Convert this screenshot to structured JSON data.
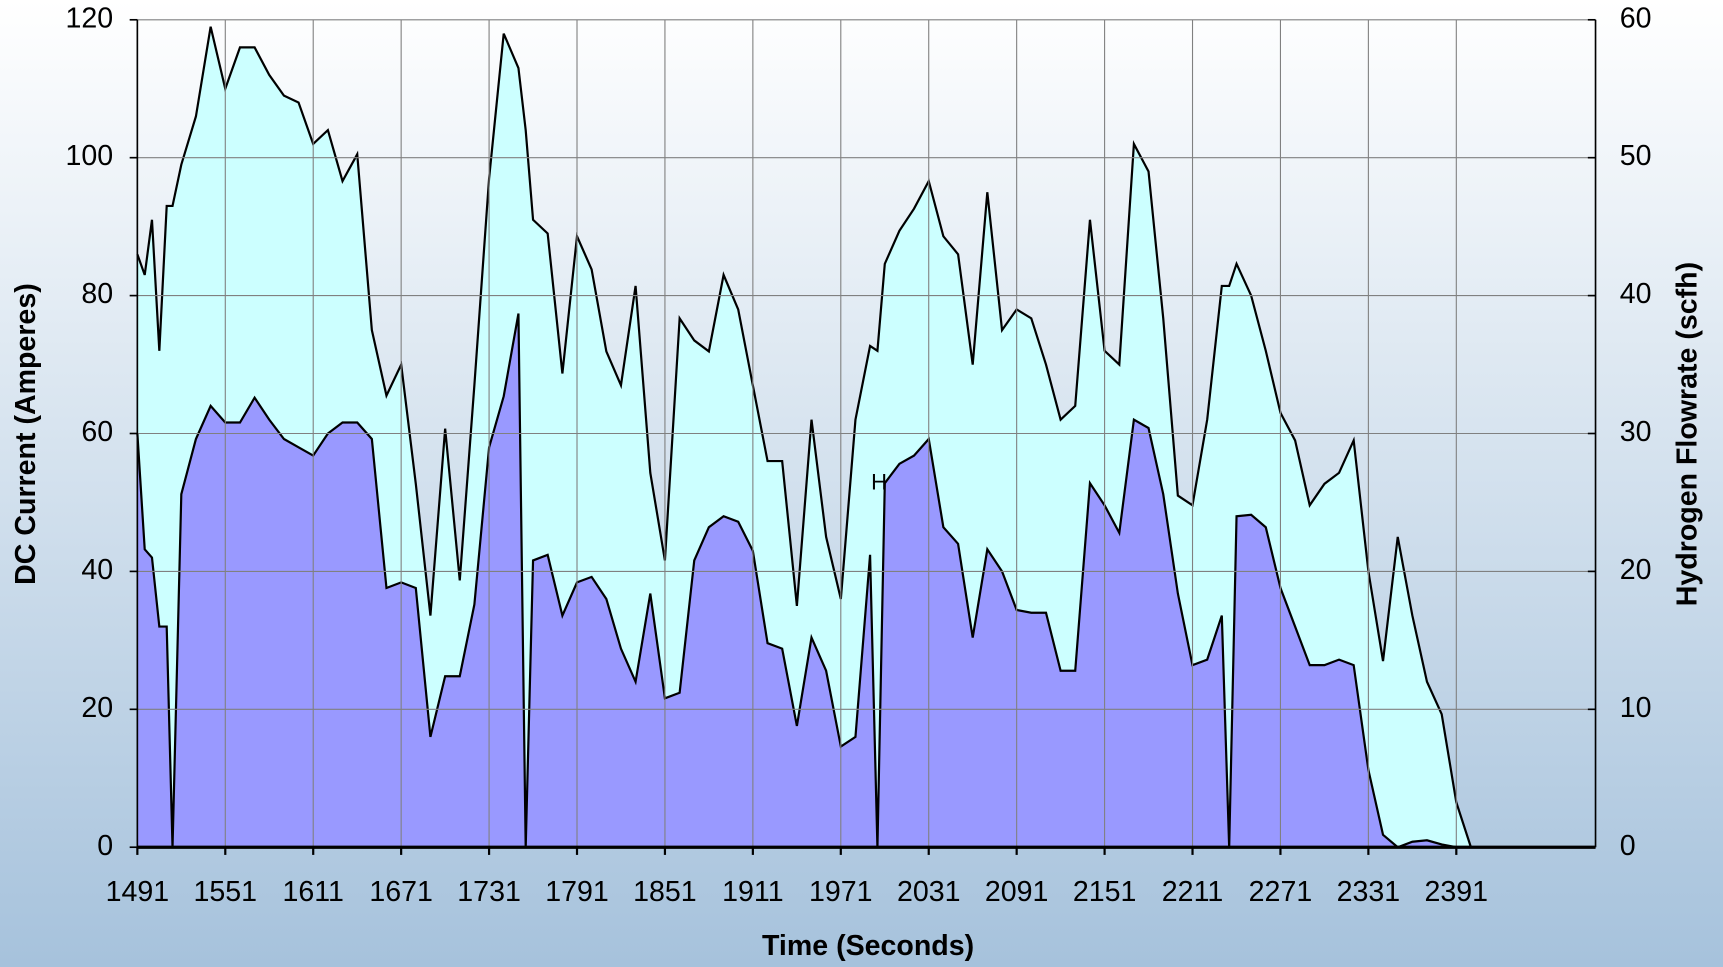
{
  "chart_data": {
    "type": "area",
    "x_label": "Time (Seconds)",
    "y_label": "DC Current (Amperes)",
    "y2_label": "Hydrogen Flowrate (scfh)",
    "annotation": "H",
    "xlim": [
      1491,
      2486
    ],
    "xticks": [
      1491,
      1551,
      1611,
      1671,
      1731,
      1791,
      1851,
      1911,
      1971,
      2031,
      2091,
      2151,
      2211,
      2271,
      2331,
      2391
    ],
    "ylim": [
      0,
      120
    ],
    "yticks": [
      0,
      20,
      40,
      60,
      80,
      100,
      120
    ],
    "y2lim": [
      0,
      60
    ],
    "y2ticks": [
      0,
      10,
      20,
      30,
      40,
      50,
      60
    ],
    "grid": true,
    "x": [
      1491,
      1496,
      1501,
      1506,
      1511,
      1515,
      1521,
      1531,
      1541,
      1551,
      1561,
      1571,
      1581,
      1591,
      1601,
      1611,
      1621,
      1631,
      1641,
      1651,
      1661,
      1671,
      1681,
      1691,
      1701,
      1711,
      1721,
      1731,
      1741,
      1751,
      1756,
      1761,
      1771,
      1781,
      1791,
      1801,
      1811,
      1821,
      1831,
      1841,
      1851,
      1861,
      1871,
      1881,
      1891,
      1901,
      1911,
      1921,
      1931,
      1941,
      1951,
      1961,
      1971,
      1981,
      1991,
      1996,
      2001,
      2011,
      2021,
      2031,
      2041,
      2051,
      2061,
      2071,
      2081,
      2091,
      2101,
      2111,
      2121,
      2131,
      2141,
      2151,
      2161,
      2171,
      2181,
      2191,
      2201,
      2211,
      2221,
      2231,
      2236,
      2241,
      2251,
      2261,
      2271,
      2281,
      2291,
      2301,
      2311,
      2321,
      2331,
      2341,
      2351,
      2361,
      2371,
      2381,
      2391,
      2401,
      2486
    ],
    "series": [
      {
        "color": "#ccffff",
        "values": [
          86,
          83,
          91,
          72,
          93,
          93,
          99,
          106,
          119,
          110,
          116,
          116,
          112,
          109,
          108,
          102,
          104,
          96.6,
          100.5,
          75,
          65.5,
          70,
          52.7,
          33.6,
          60.7,
          38.7,
          67,
          97,
          118,
          113,
          104,
          91,
          89,
          68.7,
          88.6,
          83.8,
          71.9,
          67,
          81.4,
          54.3,
          41.6,
          76.7,
          73.5,
          71.9,
          83,
          78,
          67,
          56,
          56,
          35,
          62,
          45,
          36,
          62,
          72.7,
          72,
          84.6,
          89.4,
          92.6,
          96.6,
          88.6,
          86,
          70,
          95,
          75,
          78,
          76.7,
          70,
          62,
          64,
          91,
          72,
          70,
          102,
          98,
          76.7,
          51,
          49.6,
          62,
          81.4,
          81.4,
          84.6,
          80,
          72,
          63,
          59,
          49.6,
          52.7,
          54.3,
          59,
          40,
          27,
          45,
          33.6,
          24,
          19.3,
          6.5,
          0,
          0
        ]
      },
      {
        "color": "#9999ff",
        "axis": "y2",
        "values": [
          30,
          21.6,
          21,
          16,
          16,
          0,
          25.6,
          29.6,
          32,
          30.8,
          30.8,
          32.6,
          31,
          29.6,
          29,
          28.4,
          30,
          30.8,
          30.8,
          29.6,
          18.8,
          19.2,
          18.8,
          8,
          12.4,
          12.4,
          17.6,
          29,
          32.7,
          38.7,
          0,
          20.8,
          21.2,
          16.8,
          19.2,
          19.6,
          18,
          14.4,
          12,
          18.4,
          10.8,
          11.2,
          20.8,
          23.2,
          24,
          23.6,
          21.5,
          14.8,
          14.4,
          8.8,
          15.2,
          12.8,
          7.3,
          8,
          21.2,
          0,
          26.4,
          27.8,
          28.4,
          29.6,
          23.2,
          22,
          15.2,
          21.6,
          20,
          17.2,
          17,
          17,
          12.8,
          12.8,
          26.4,
          24.8,
          22.8,
          31,
          30.4,
          25.6,
          18.4,
          13.2,
          13.6,
          16.8,
          0,
          24,
          24.1,
          23.2,
          18.8,
          16,
          13.2,
          13.2,
          13.6,
          13.2,
          5.6,
          0.9,
          0,
          0.4,
          0.5,
          0.2,
          0,
          0,
          0
        ]
      }
    ]
  }
}
